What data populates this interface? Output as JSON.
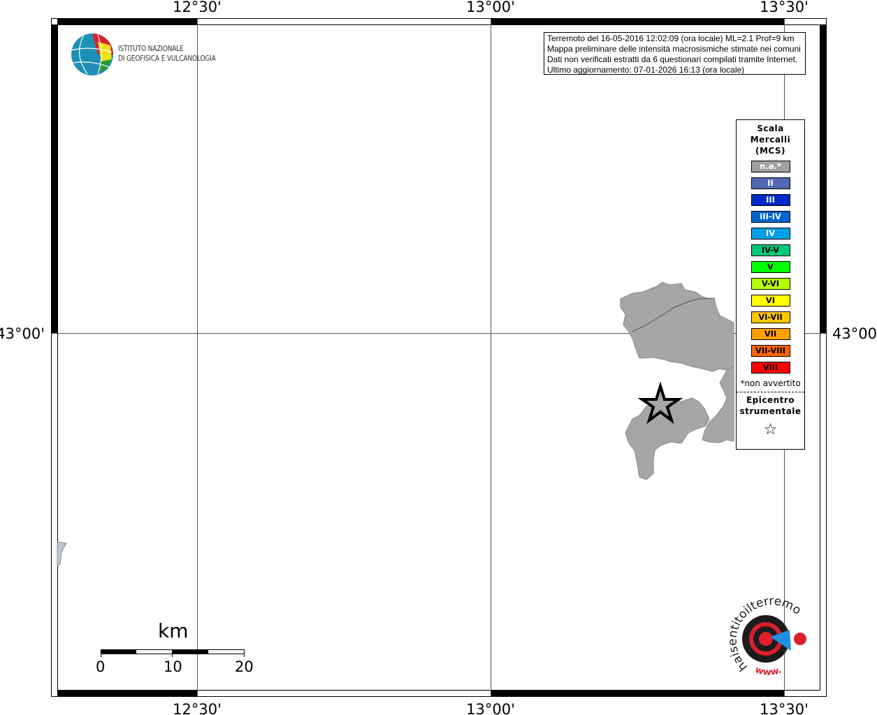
{
  "map": {
    "longitude_ticks": [
      "12°30'",
      "13°00'",
      "13°30'"
    ],
    "latitude_ticks": [
      "43°00'"
    ],
    "epicenter_marker": "star-icon",
    "affected_area_color": "#a6a6a6"
  },
  "info_box": {
    "lines": [
      "Terremoto del 16-05-2016 12:02:09 (ora locale) ML=2.1 Prof=9 km",
      "Mappa preliminare delle intensità macrosismiche stimate nei comuni",
      "Dati non verificati estratti da 6 questionari compilati tramite Internet.",
      "Ultimo aggiornamento: 07-01-2026 16:13 (ora locale)"
    ]
  },
  "legend": {
    "title_lines": [
      "Scala",
      "Mercalli",
      "(MCS)"
    ],
    "classes": [
      {
        "label": "n.a.*",
        "color": "#a0a0a0",
        "text_color": "#ffffff"
      },
      {
        "label": "II",
        "color": "#5068b4",
        "text_color": "#ffffff"
      },
      {
        "label": "III",
        "color": "#0028c8",
        "text_color": "#ffffff"
      },
      {
        "label": "III-IV",
        "color": "#0064d2",
        "text_color": "#ffffff"
      },
      {
        "label": "IV",
        "color": "#00a0e6",
        "text_color": "#ffffff"
      },
      {
        "label": "IV-V",
        "color": "#00c878",
        "text_color": "#000000"
      },
      {
        "label": "V",
        "color": "#00ff00",
        "text_color": "#000000"
      },
      {
        "label": "V-VI",
        "color": "#b8ff00",
        "text_color": "#000000"
      },
      {
        "label": "VI",
        "color": "#ffff00",
        "text_color": "#000000"
      },
      {
        "label": "VI-VII",
        "color": "#ffc800",
        "text_color": "#000000"
      },
      {
        "label": "VII",
        "color": "#ffa000",
        "text_color": "#000000"
      },
      {
        "label": "VII-VIII",
        "color": "#ff6400",
        "text_color": "#000000"
      },
      {
        "label": "VIII",
        "color": "#ff0000",
        "text_color": "#000000"
      }
    ],
    "footnote": "*non avvertito",
    "epicenter_lines": [
      "Epicentro",
      "strumentale"
    ],
    "epicenter_symbol": "☆"
  },
  "logo_ingv": {
    "lines": [
      "ISTITUTO NAZIONALE",
      "DI GEOFISICA E VULCANOLOGIA"
    ]
  },
  "logo_hsit": {
    "text": "haisentitoilterremoto.it",
    "www": "www."
  },
  "scale_bar": {
    "unit": "km",
    "labels": [
      "0",
      "10",
      "20"
    ]
  }
}
